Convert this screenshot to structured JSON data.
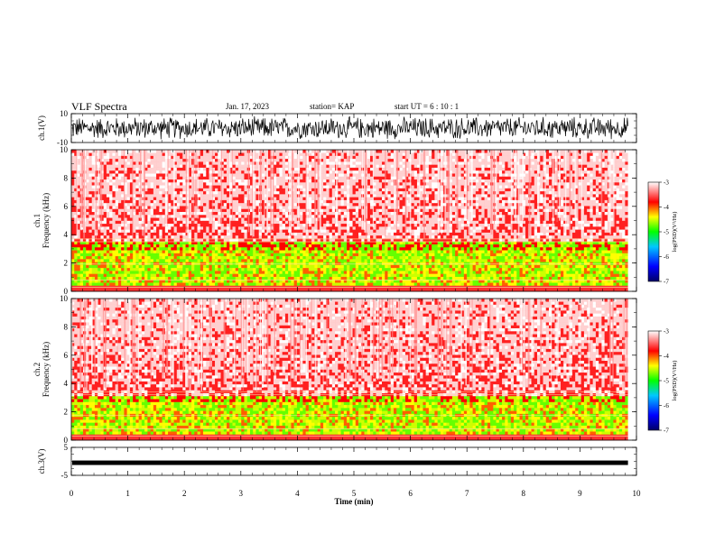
{
  "header": {
    "title": "VLF Spectra",
    "date": "Jan. 17, 2023",
    "station": "station= KAP",
    "start": "start  UT  =   6  : 10 : 1"
  },
  "chart_data": [
    {
      "type": "line",
      "ylabel": "ch.1(V)",
      "ylim": [
        -10,
        10
      ],
      "y_tick_labels": [
        "-10",
        "10"
      ],
      "xlim": [
        0,
        9.85
      ],
      "description_of_trace": "dense noise waveform spanning approx. -8 to 8 V"
    },
    {
      "type": "heatmap",
      "ylabel": "ch.1\nFrequency  (kHz)",
      "ylim": [
        0,
        10
      ],
      "y_tick_labels": [
        "0",
        "2",
        "4",
        "6",
        "8",
        "10"
      ],
      "xlim": [
        0,
        9.85
      ],
      "colorbar": {
        "label": "log(PSD)(V²/Hz)",
        "range": [
          -7,
          -3
        ],
        "tick_labels": [
          "-7",
          "-6",
          "-5",
          "-4",
          "-3"
        ],
        "colors": [
          "#000066",
          "#0000ff",
          "#00c8ff",
          "#00ff00",
          "#ffff00",
          "#ff0000",
          "#ffffff"
        ]
      },
      "bands_khz": [
        {
          "from": 0,
          "to": 3.5,
          "level": "green-yellow"
        },
        {
          "from": 3.5,
          "to": 10,
          "level": "red-white"
        }
      ]
    },
    {
      "type": "heatmap",
      "ylabel": "ch.2\nFrequency  (kHz)",
      "ylim": [
        0,
        10
      ],
      "y_tick_labels": [
        "0",
        "2",
        "4",
        "6",
        "8",
        "10"
      ],
      "xlim": [
        0,
        9.85
      ],
      "colorbar": {
        "label": "log(PSD)(V²/Hz)",
        "range": [
          -7,
          -3
        ],
        "tick_labels": [
          "-7",
          "-6",
          "-5",
          "-4",
          "-3"
        ],
        "colors": [
          "#000066",
          "#0000ff",
          "#00c8ff",
          "#00ff00",
          "#ffff00",
          "#ff0000",
          "#ffffff"
        ]
      },
      "bands_khz": [
        {
          "from": 0,
          "to": 3.2,
          "level": "green-yellow"
        },
        {
          "from": 3.2,
          "to": 10,
          "level": "red-white"
        }
      ]
    },
    {
      "type": "line",
      "ylabel": "ch.3(V)",
      "ylim": [
        -5,
        5
      ],
      "y_tick_labels": [
        "-5",
        "5"
      ],
      "xlim": [
        0,
        9.85
      ],
      "description_of_trace": "thick dense band around -0.5 V"
    }
  ],
  "x_axis": {
    "label": "Time  (min)",
    "ticks": [
      0,
      1,
      2,
      3,
      4,
      5,
      6,
      7,
      8,
      9,
      10
    ],
    "range": [
      0,
      10
    ]
  }
}
